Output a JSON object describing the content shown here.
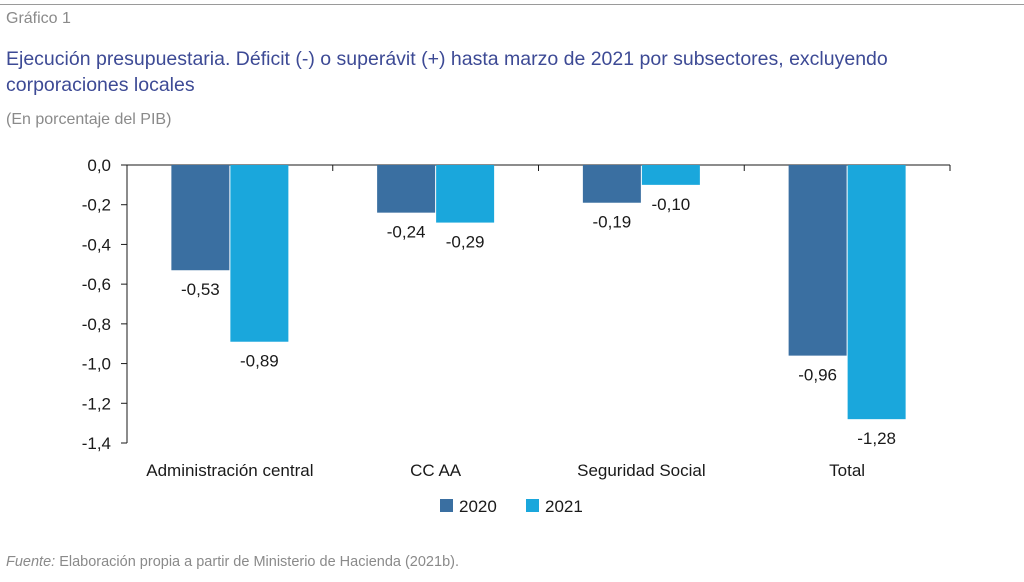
{
  "header": {
    "kicker": "Gráfico 1",
    "title": "Ejecución presupuestaria. Déficit (-) o superávit (+) hasta marzo de 2021 por subsectores, excluyendo corporaciones locales",
    "subtitle": "(En porcentaje del PIB)"
  },
  "footer": {
    "source_prefix": "Fuente:",
    "source_text": " Elaboración propia a partir de Ministerio de Hacienda (2021b)."
  },
  "chart_data": {
    "type": "bar",
    "categories": [
      "Administración central",
      "CC AA",
      "Seguridad Social",
      "Total"
    ],
    "series": [
      {
        "name": "2020",
        "values": [
          -0.53,
          -0.24,
          -0.19,
          -0.96
        ],
        "labels": [
          "-0,53",
          "-0,24",
          "-0,19",
          "-0,96"
        ],
        "color": "#3a6fa1"
      },
      {
        "name": "2021",
        "values": [
          -0.89,
          -0.29,
          -0.1,
          -1.28
        ],
        "labels": [
          "-0,89",
          "-0,29",
          "-0,10",
          "-1,28"
        ],
        "color": "#1aa7dc"
      }
    ],
    "ylim": [
      -1.4,
      0
    ],
    "yticks": [
      0,
      -0.2,
      -0.4,
      -0.6,
      -0.8,
      -1.0,
      -1.2,
      -1.4
    ],
    "ytick_labels": [
      "0,0",
      "-0,2",
      "-0,4",
      "-0,6",
      "-0,8",
      "-1,0",
      "-1,2",
      "-1,4"
    ],
    "grid": false,
    "legend": "bottom-center",
    "axis_color": "#1a1a1a"
  }
}
